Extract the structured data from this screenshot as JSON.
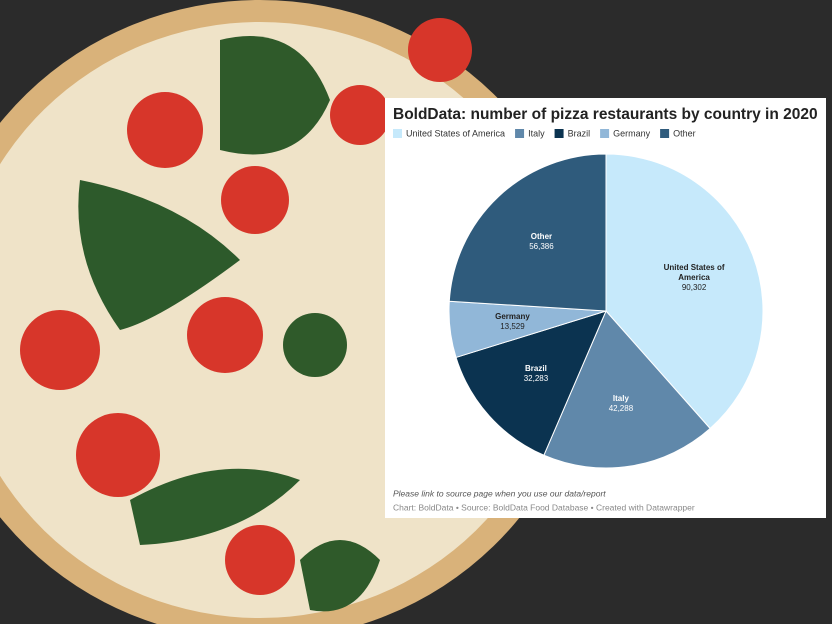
{
  "chart_data": {
    "type": "pie",
    "title": "BoldData: number of pizza restaurants by country in 2020",
    "categories": [
      "United States of America",
      "Italy",
      "Brazil",
      "Germany",
      "Other"
    ],
    "values": [
      90302,
      42288,
      32283,
      13529,
      56386
    ],
    "value_labels": [
      "90,302",
      "42,288",
      "32,283",
      "13,529",
      "56,386"
    ],
    "colors": [
      "#c6e9fb",
      "#6088aa",
      "#0b3350",
      "#91b7d8",
      "#2f5b7c"
    ],
    "note": "Please link to source page when you use our data/report",
    "source": "Chart: BoldData • Source: BoldData Food Database • Created with Datawrapper"
  }
}
